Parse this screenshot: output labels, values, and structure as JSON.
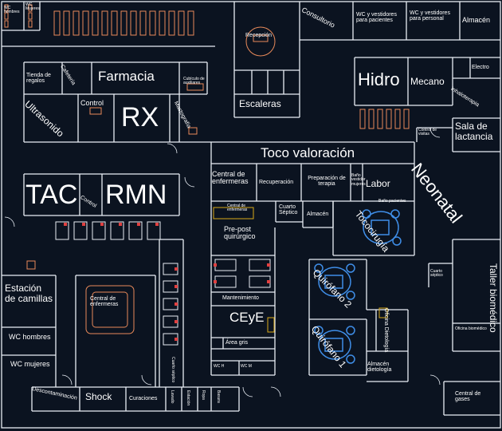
{
  "plan": {
    "background": "#0b1320",
    "wall_color": "#e9eef5",
    "furniture_color": "#e98a5a",
    "equipment_color": "#3f8ee8",
    "accent_red": "#e04040",
    "accent_yellow": "#d8a817"
  },
  "rooms": {
    "wc_hombres_top": "WC hombres",
    "wc_mujeres_top": "WC Mujeres",
    "consultorio": "Consultorio",
    "wc_pacientes": "WC y vestidores para pacientes",
    "wc_personal": "WC y vestidores para personal",
    "almacen_top": "Almacén",
    "recepcion": "Recepción",
    "tienda": "Tienda de regalos",
    "cafeteria": "Cafetería",
    "farmacia": "Farmacia",
    "cubiculo": "Cubículo de auxiliares",
    "hidro": "Hidro",
    "mecano": "Mecano",
    "electro": "Electro",
    "ultrasonido": "Ultrasonido",
    "control_top": "Control",
    "rx": "RX",
    "mastografia": "Mastografía",
    "escaleras": "Escaleras",
    "inhaloterapia": "Inhaloterapia",
    "control_visitas": "Control de visitas",
    "sala_lactancia": "Sala de lactancia",
    "toco_valoracion": "Toco valoración",
    "central_enfermeras_1": "Central de enfermeras",
    "recuperacion": "Recuperación",
    "preparacion": "Preparación de terapia",
    "bano_vestidor": "Baño vestidor mujeres",
    "labor": "Labor",
    "neonatal": "Neonatal",
    "bano_pacientes": "Baño pacientes",
    "tac": "TAC",
    "control_mid": "Control",
    "rmn": "RMN",
    "central_enfermeras_2": "Central de enfermeras",
    "cuarto_septico_1": "Cuarto Séptico",
    "almacen_mid": "Almacén",
    "tococirugia": "Tococirugía",
    "pre_post": "Pre-post quirúrgico",
    "estacion_camillas": "Estación de camillas",
    "central_enfermeras_3": "Central de enfermeras",
    "mantenimiento": "Mantenimiento",
    "quirofano_2": "Quirófano 2",
    "cuarto_septico_2": "Cuarto séptico",
    "taller_biomedico": "Taller biomédico",
    "ceye": "CEyE",
    "oficina_dietologia": "Oficina Dietología",
    "oficina_biomedico": "Oficina biomédico",
    "wc_hombres": "WC hombres",
    "area_gris": "Área gris",
    "wc_mujeres": "WC mujeres",
    "cuarto_septico_3": "Cuarto séptico",
    "quirofano_1": "Quirófano 1",
    "almacen_dietologia": "Almacén dietología",
    "wc_h": "WC H",
    "wc_m": "WC M",
    "descontaminacion": "Descontaminación",
    "shock": "Shock",
    "curaciones": "Curaciones",
    "lavado": "Lavado",
    "central_gases": "Central de gases",
    "estacion_small": "Estación",
    "ropa": "Ropa",
    "basura": "Basura",
    "ropa_sucia": "Ropa sucia"
  }
}
